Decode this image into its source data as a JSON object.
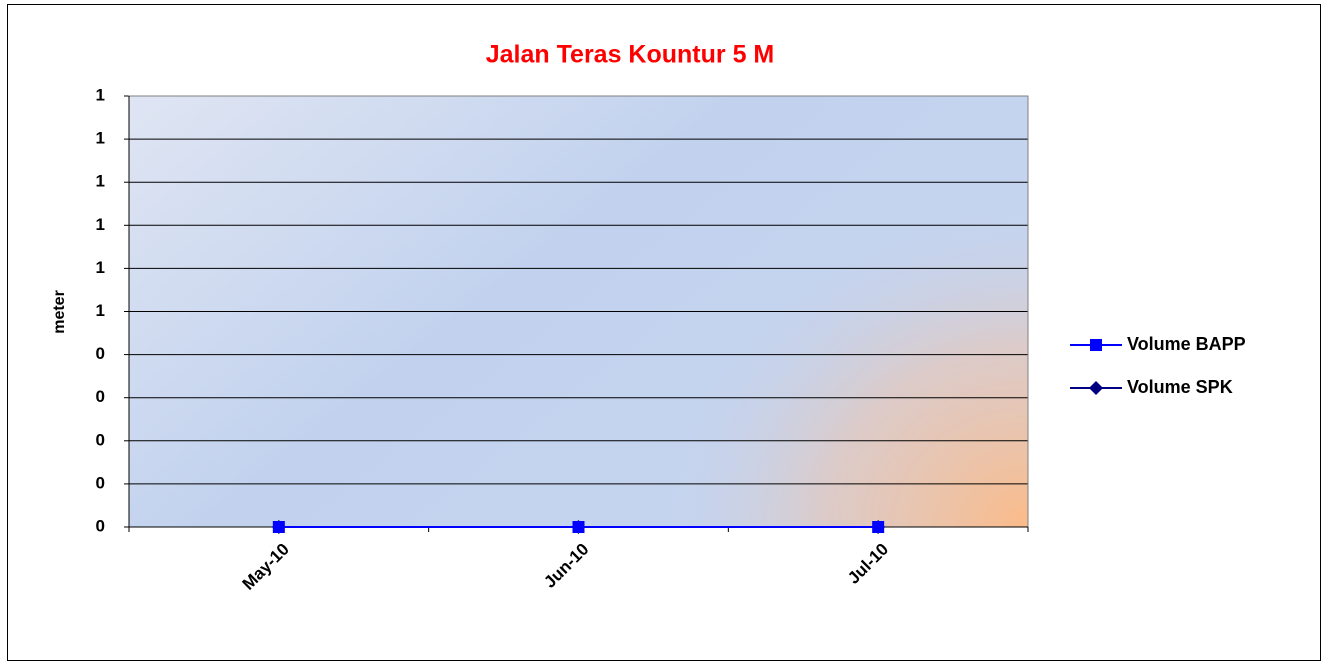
{
  "chart_data": {
    "type": "line",
    "title": "Jalan Teras Kountur 5 M",
    "y_label": "meter",
    "categories": [
      "May-10",
      "Jun-10",
      "Jul-10"
    ],
    "series": [
      {
        "name": "Volume BAPP",
        "color": "#0000ff",
        "marker": "square",
        "values": [
          0,
          0,
          0
        ]
      },
      {
        "name": "Volume SPK",
        "color": "#000080",
        "marker": "diamond",
        "values": [
          0,
          0,
          0
        ]
      }
    ],
    "ylim": [
      0,
      1
    ],
    "yticks": [
      0,
      {
        "value": 0.1,
        "label": "0"
      },
      {
        "value": 0.2,
        "label": "0"
      },
      {
        "value": 0.3,
        "label": "0"
      },
      {
        "value": 0.4,
        "label": "0"
      },
      {
        "value": 0.5,
        "label": "1"
      },
      {
        "value": 0.6,
        "label": "1"
      },
      {
        "value": 0.7,
        "label": "1"
      },
      {
        "value": 0.8,
        "label": "1"
      },
      {
        "value": 0.9,
        "label": "1"
      },
      1
    ],
    "grid": true,
    "legend": "right"
  }
}
